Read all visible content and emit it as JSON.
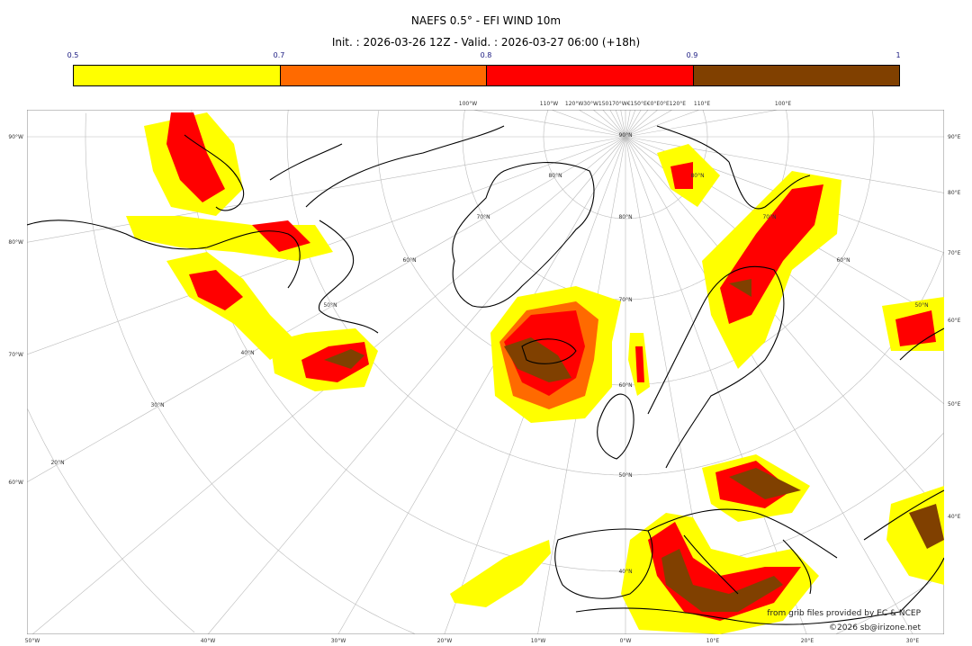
{
  "title": "NAEFS 0.5° - EFI WIND 10m",
  "subtitle": "Init. : 2026-03-26 12Z - Valid. : 2026-03-27 06:00 (+18h)",
  "colorbar": {
    "ticks": [
      "0.5",
      "0.7",
      "0.8",
      "0.9",
      "1"
    ],
    "colors": [
      "#ffff00",
      "#ff6a00",
      "#ff0000",
      "#804000"
    ]
  },
  "axes": {
    "bottom": [
      "50°W",
      "40°W",
      "30°W",
      "20°W",
      "10°W",
      "0°W",
      "10°E",
      "20°E",
      "30°E"
    ],
    "left": [
      "90°W",
      "80°W",
      "70°W",
      "60°W"
    ],
    "right": [
      "90°E",
      "80°E",
      "70°E",
      "60°E",
      "50°E",
      "40°E"
    ],
    "top": [
      "100°W",
      "110°W",
      "120°W30°W150170°W€150°E€0°E0°E120°E",
      "110°E",
      "100°E"
    ],
    "lat": [
      "90°N",
      "80°N",
      "70°N",
      "60°N",
      "50°N",
      "40°N",
      "30°N",
      "20°N"
    ]
  },
  "credits": {
    "source": "from grib files provided by EC & NCEP",
    "copyright": "©2026 sb@irizone.net"
  }
}
